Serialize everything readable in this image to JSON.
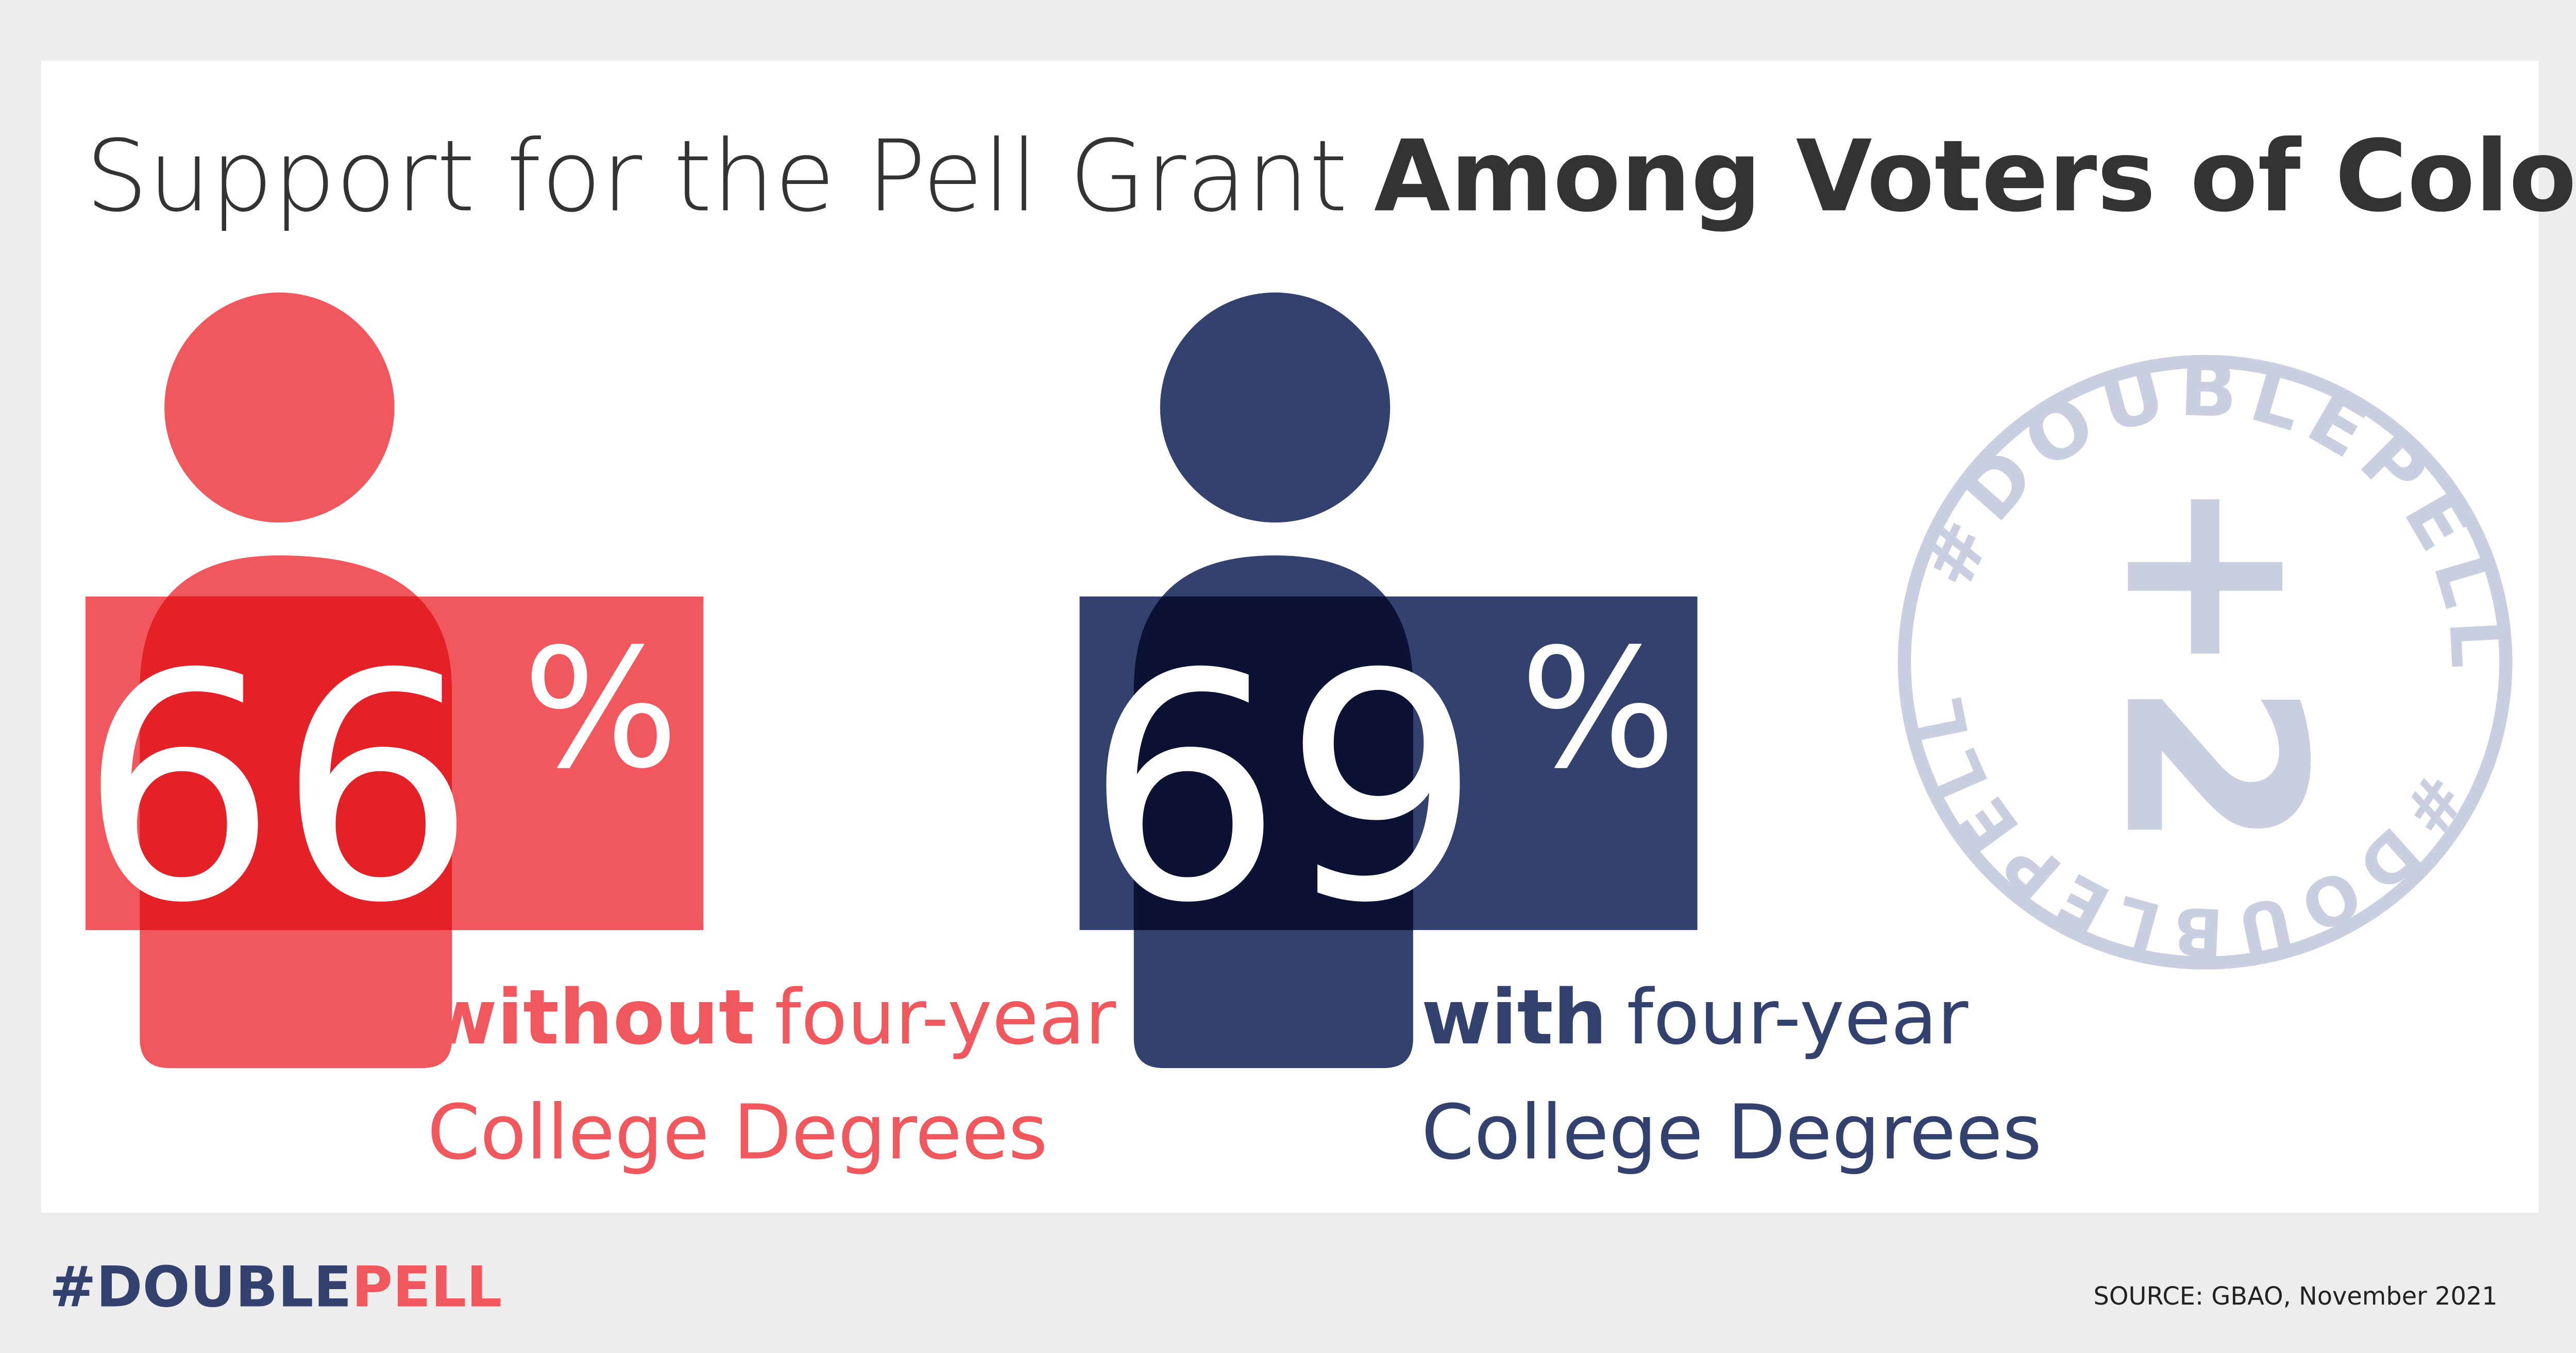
{
  "title": {
    "light": "Support for the Pell Grant",
    "bold": "Among Voters of Color"
  },
  "panels": [
    {
      "number": "66",
      "unit": "%",
      "bold": "without",
      "light": "four-year",
      "line2": "College Degrees"
    },
    {
      "number": "69",
      "unit": "%",
      "bold": "with",
      "light": "four-year",
      "line2": "College Degrees"
    }
  ],
  "stamp": {
    "ring_top": "#DOUBLEPELL",
    "ring_bottom": "#DOUBLEPELL",
    "center": "+2"
  },
  "footer": {
    "brand_part1": "#DOUBLE",
    "brand_part2": "PELL",
    "source": "SOURCE: GBAO, November 2021"
  }
}
